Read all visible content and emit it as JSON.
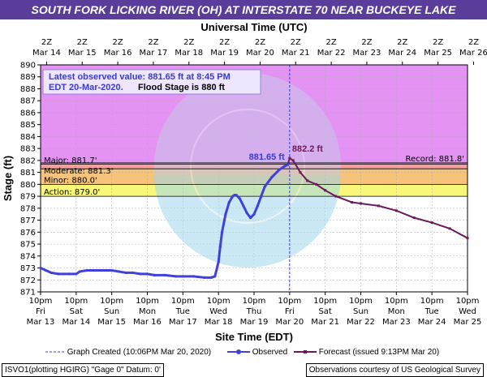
{
  "title": "SOUTH FORK LICKING RIVER (OH) AT INTERSTATE 70 NEAR BUCKEYE LAKE",
  "colors": {
    "title_bg": "#5a3d9a",
    "major_band": "#e592f5",
    "moderate_band": "#f5a0a0",
    "minor_band": "#f5c37a",
    "action_band": "#f7f77a",
    "observed": "#4040dd",
    "forecast": "#6b1a5c",
    "annotation_text": "#3a3ad0"
  },
  "chart_data": {
    "type": "line",
    "top_axis_title": "Universal Time (UTC)",
    "top_axis_hour": [
      "2Z",
      "2Z",
      "2Z",
      "2Z",
      "2Z",
      "2Z",
      "2Z",
      "2Z",
      "2Z",
      "2Z",
      "2Z",
      "2Z",
      "2Z"
    ],
    "top_axis_dates": [
      "Mar 14",
      "Mar 15",
      "Mar 16",
      "Mar 17",
      "Mar 18",
      "Mar 19",
      "Mar 20",
      "Mar 21",
      "Mar 22",
      "Mar 23",
      "Mar 24",
      "Mar 25",
      "Mar 26"
    ],
    "xlabel": "Site Time (EDT)",
    "ylabel": "Stage (ft)",
    "ylim": [
      871,
      890
    ],
    "yticks": [
      871,
      872,
      873,
      874,
      875,
      876,
      877,
      878,
      879,
      880,
      881,
      882,
      883,
      884,
      885,
      886,
      887,
      888,
      889,
      890
    ],
    "x_ticks_time": [
      "10pm",
      "10pm",
      "10pm",
      "10pm",
      "10pm",
      "10pm",
      "10pm",
      "10pm",
      "10pm",
      "10pm",
      "10pm",
      "10pm",
      "10pm"
    ],
    "x_ticks_day": [
      "Fri",
      "Sat",
      "Sun",
      "Mon",
      "Tue",
      "Wed",
      "Thu",
      "Fri",
      "Sat",
      "Sun",
      "Mon",
      "Tue",
      "Wed"
    ],
    "x_ticks_date": [
      "Mar 13",
      "Mar 14",
      "Mar 15",
      "Mar 16",
      "Mar 17",
      "Mar 18",
      "Mar 19",
      "Mar 20",
      "Mar 21",
      "Mar 22",
      "Mar 23",
      "Mar 24",
      "Mar 25"
    ],
    "flood_categories": [
      {
        "label": "Major: 881.7'",
        "value": 881.7
      },
      {
        "label": "Moderate: 881.3'",
        "value": 881.3
      },
      {
        "label": "Minor: 880.0'",
        "value": 880.0
      },
      {
        "label": "Action: 879.0'",
        "value": 879.0
      }
    ],
    "record_label": "Record: 881.8'",
    "record_value": 881.8,
    "graph_created_x": 7.0,
    "observed": {
      "name": "Observed",
      "x": [
        0,
        0.15,
        0.3,
        0.5,
        0.8,
        1.0,
        1.1,
        1.3,
        1.5,
        1.7,
        1.85,
        2.0,
        2.2,
        2.4,
        2.6,
        2.8,
        3.0,
        3.2,
        3.5,
        3.8,
        4.0,
        4.3,
        4.6,
        4.8,
        4.9,
        5.0,
        5.05,
        5.1,
        5.2,
        5.3,
        5.4,
        5.45,
        5.5,
        5.6,
        5.7,
        5.8,
        5.9,
        6.0,
        6.1,
        6.2,
        6.3,
        6.5,
        6.7,
        6.85,
        6.95
      ],
      "y": [
        873.0,
        872.8,
        872.6,
        872.5,
        872.5,
        872.5,
        872.7,
        872.8,
        872.8,
        872.8,
        872.8,
        872.8,
        872.7,
        872.6,
        872.6,
        872.5,
        872.5,
        872.4,
        872.4,
        872.3,
        872.3,
        872.3,
        872.2,
        872.2,
        872.3,
        873.5,
        874.8,
        876.0,
        877.5,
        878.5,
        879.0,
        879.1,
        879.1,
        878.8,
        878.2,
        877.6,
        877.2,
        877.5,
        878.2,
        879.0,
        879.8,
        880.6,
        881.2,
        881.5,
        881.65
      ]
    },
    "forecast": {
      "name": "Forecast (issued 9:13PM Mar 20)",
      "x": [
        6.95,
        7.0,
        7.1,
        7.3,
        7.5,
        7.75,
        8.0,
        8.3,
        8.75,
        9.0,
        9.5,
        10.0,
        10.5,
        11.0,
        11.5,
        12.0
      ],
      "y": [
        881.65,
        882.2,
        882.0,
        881.0,
        880.3,
        880.0,
        879.5,
        879.0,
        878.5,
        878.4,
        878.2,
        877.8,
        877.2,
        876.8,
        876.3,
        875.5
      ]
    },
    "annotations": {
      "latest_line1": "Latest observed value: 881.65 ft at 8:45 PM",
      "latest_line2": "EDT 20-Mar-2020.",
      "flood_stage": "Flood Stage is 880 ft",
      "observed_peak_label": "881.65 ft",
      "forecast_peak_label": "882.2 ft"
    },
    "legend": {
      "graph_created": "Graph Created (10:06PM Mar 20, 2020)",
      "observed": "Observed",
      "forecast": "Forecast (issued 9:13PM Mar 20)"
    }
  },
  "footer": {
    "station": "ISVO1(plotting HGIRG) \"Gage 0\" Datum: 0'",
    "source": "Observations courtesy of US Geological Survey"
  }
}
